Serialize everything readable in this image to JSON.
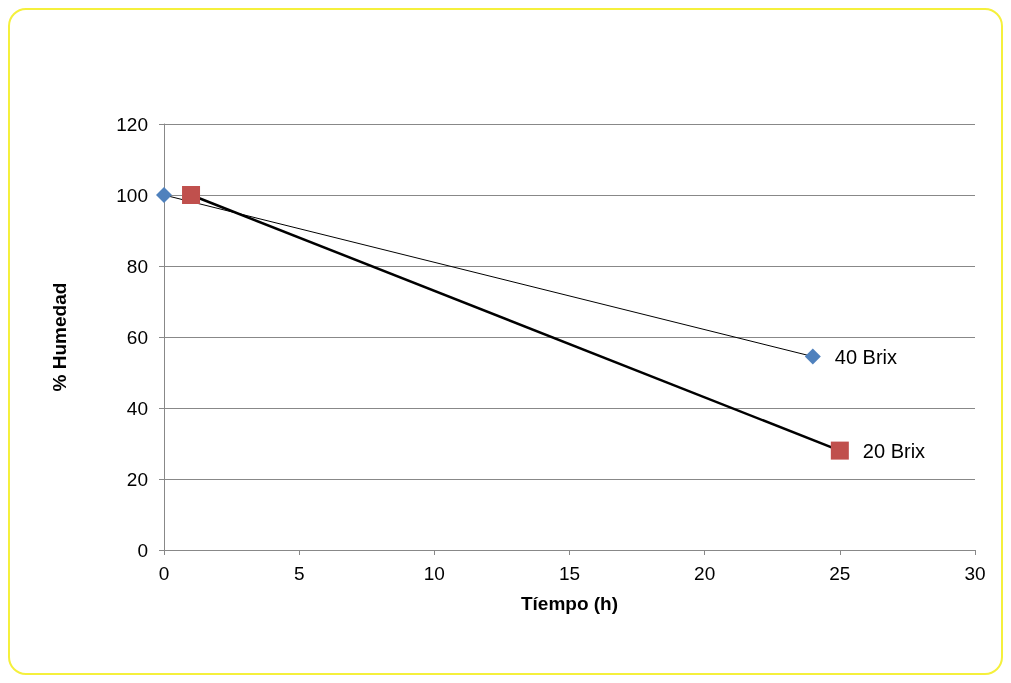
{
  "chart_data": {
    "type": "line",
    "xlabel": "Tíempo (h)",
    "ylabel": "% Humedad",
    "xlim": [
      0,
      30
    ],
    "xticks": [
      0,
      5,
      10,
      15,
      20,
      25,
      30
    ],
    "ylim": [
      0,
      120
    ],
    "yticks": [
      0,
      20,
      40,
      60,
      80,
      100,
      120
    ],
    "grid": "y",
    "legend": false,
    "series": [
      {
        "name": "40 Brix",
        "color": "#4f81bd",
        "marker": "diamond",
        "x": [
          0,
          24
        ],
        "values": [
          100,
          54.5
        ]
      },
      {
        "name": "20 Brix",
        "color": "#c0504d",
        "marker": "square",
        "x": [
          1,
          25
        ],
        "values": [
          100,
          28
        ]
      }
    ]
  }
}
